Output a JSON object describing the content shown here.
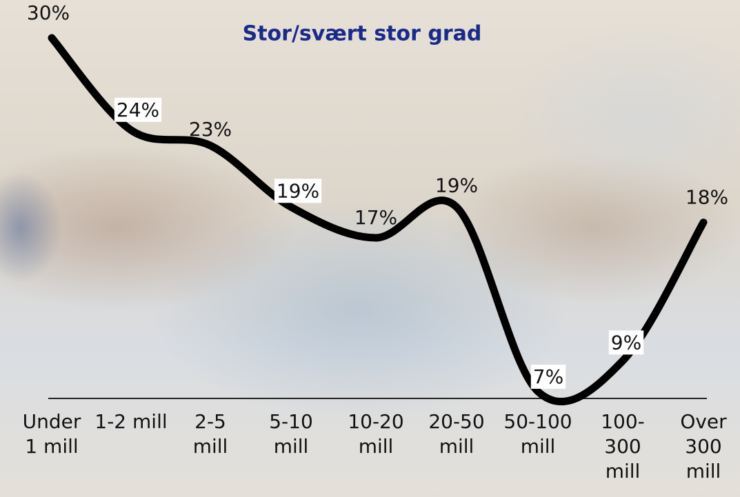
{
  "chart_data": {
    "type": "line",
    "title": "Stor/svært stor grad",
    "categories": [
      "Under 1 mill",
      "1-2 mill",
      "2-5 mill",
      "5-10 mill",
      "10-20 mill",
      "20-50 mill",
      "50-100 mill",
      "100-300 mill",
      "Over 300 mill"
    ],
    "values": [
      30,
      24,
      23,
      19,
      17,
      19,
      7,
      9,
      18
    ],
    "value_labels": [
      "30%",
      "24%",
      "23%",
      "19%",
      "17%",
      "19%",
      "7%",
      "9%",
      "18%"
    ],
    "color": "#000000",
    "smooth": true
  }
}
